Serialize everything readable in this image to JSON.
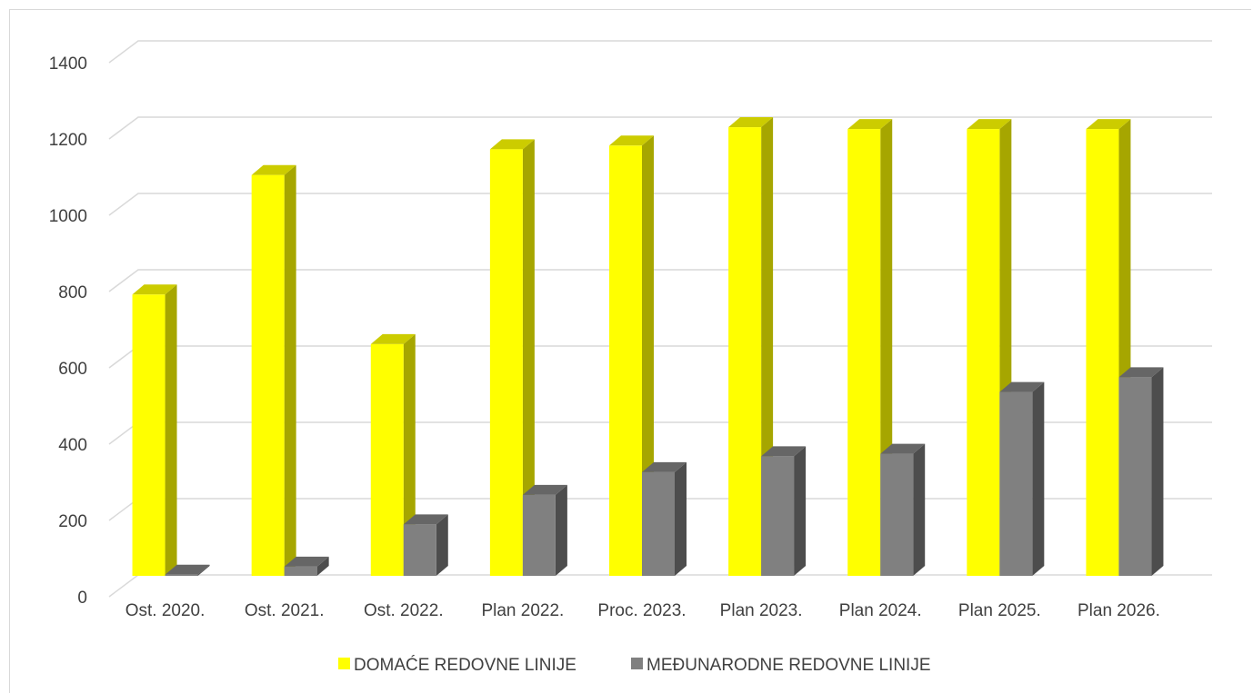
{
  "chart_data": {
    "type": "bar",
    "title": "",
    "xlabel": "",
    "ylabel": "",
    "categories": [
      "Ost. 2020.",
      "Ost. 2021.",
      "Ost. 2022.",
      "Plan 2022.",
      "Proc. 2023.",
      "Plan 2023.",
      "Plan 2024.",
      "Plan 2025.",
      "Plan 2026."
    ],
    "series": [
      {
        "name": "DOMAĆE REDOVNE LINIJE",
        "values": [
          765,
          1090,
          630,
          1160,
          1170,
          1220,
          1215,
          1215,
          1215
        ]
      },
      {
        "name": "MEĐUNARODNE REDOVNE LINIJE",
        "values": [
          3,
          25,
          140,
          220,
          282,
          325,
          332,
          500,
          540
        ]
      }
    ],
    "ylim": [
      0,
      1400
    ],
    "yticks": [
      0,
      200,
      400,
      600,
      800,
      1000,
      1200,
      1400
    ],
    "grid": true,
    "legend_position": "bottom",
    "colors": {
      "series1_front": "#ffff00",
      "series1_side": "#a6a600",
      "series1_top": "#cccc00",
      "series2_front": "#808080",
      "series2_side": "#4d4d4d",
      "series2_top": "#666666",
      "grid": "#d9d9d9",
      "text": "#404040"
    }
  }
}
